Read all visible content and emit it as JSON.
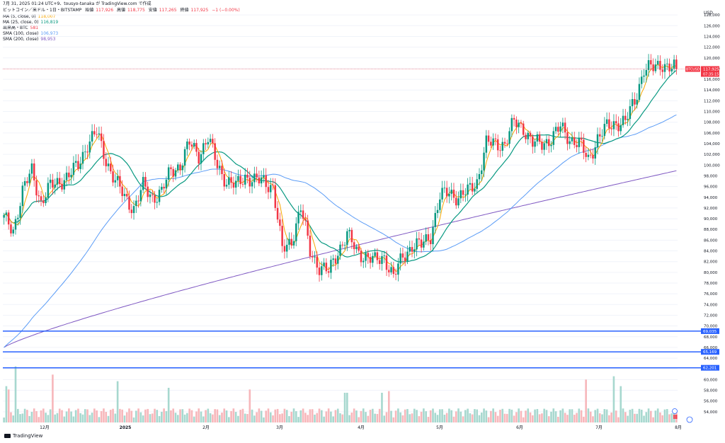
{
  "header": {
    "title_line": "7月 31, 2025 01:24 UTC+9、tousyo-tanaka が TradingView.com で作成",
    "symbol": "ビットコイン／米ドル・1日・BITSTAMP",
    "open_label": "始値",
    "open": "117,926",
    "high_label": "高値",
    "high": "118,775",
    "low_label": "安値",
    "low": "117,265",
    "close_label": "終値",
    "close": "117,925",
    "change": "−1 (−0.00%)",
    "indicators": [
      {
        "label": "MA (5, close, 0)",
        "value": "118,007",
        "cls": "ma5"
      },
      {
        "label": "MA (25, close, 0)",
        "value": "116,819",
        "cls": "ma25"
      },
      {
        "label": "出来高・BTC",
        "value": "581",
        "cls": "vol"
      },
      {
        "label": "SMA (100, close)",
        "value": "106,973",
        "cls": "sma100"
      },
      {
        "label": "SMA (200, close)",
        "value": "98,953",
        "cls": "sma200"
      }
    ]
  },
  "brand": "TradingView",
  "chart_data": {
    "type": "candlestick",
    "currency_label": "USD",
    "ylim": [
      52000,
      130000
    ],
    "y_ticks": [
      54000,
      56000,
      58000,
      60000,
      62000,
      64000,
      66000,
      68000,
      70000,
      72000,
      74000,
      76000,
      78000,
      80000,
      82000,
      84000,
      86000,
      88000,
      90000,
      92000,
      94000,
      96000,
      98000,
      100000,
      102000,
      104000,
      106000,
      108000,
      110000,
      112000,
      114000,
      116000,
      118000,
      120000,
      122000,
      124000,
      126000,
      128000
    ],
    "x_labels": [
      "12月",
      "2025",
      "2月",
      "3月",
      "4月",
      "5月",
      "6月",
      "7月",
      "8月"
    ],
    "price_label": {
      "symbol": "BTCUSD",
      "value": "117,925",
      "countdown": "07:35:15"
    },
    "horizontal_levels": [
      {
        "value": 69035,
        "label": "69,035"
      },
      {
        "value": 65169,
        "label": "65,169"
      },
      {
        "value": 62201,
        "label": "62,201"
      }
    ],
    "anchors": [
      [
        0,
        90000
      ],
      [
        4,
        88000
      ],
      [
        8,
        95000
      ],
      [
        12,
        99000
      ],
      [
        16,
        93000
      ],
      [
        20,
        96000
      ],
      [
        24,
        97000
      ],
      [
        28,
        98000
      ],
      [
        32,
        100000
      ],
      [
        36,
        104000
      ],
      [
        40,
        106000
      ],
      [
        44,
        101000
      ],
      [
        48,
        97000
      ],
      [
        52,
        94000
      ],
      [
        56,
        92000
      ],
      [
        60,
        96000
      ],
      [
        64,
        94000
      ],
      [
        68,
        95000
      ],
      [
        72,
        99000
      ],
      [
        76,
        100000
      ],
      [
        80,
        104000
      ],
      [
        84,
        102000
      ],
      [
        88,
        105000
      ],
      [
        92,
        100000
      ],
      [
        96,
        97000
      ],
      [
        100,
        96000
      ],
      [
        104,
        98000
      ],
      [
        108,
        97000
      ],
      [
        112,
        97000
      ],
      [
        116,
        96000
      ],
      [
        120,
        84000
      ],
      [
        124,
        86000
      ],
      [
        128,
        92000
      ],
      [
        132,
        84000
      ],
      [
        136,
        81000
      ],
      [
        140,
        80000
      ],
      [
        144,
        84000
      ],
      [
        148,
        87000
      ],
      [
        152,
        84000
      ],
      [
        156,
        83000
      ],
      [
        160,
        82000
      ],
      [
        164,
        83000
      ],
      [
        168,
        79000
      ],
      [
        172,
        83000
      ],
      [
        176,
        85000
      ],
      [
        180,
        85000
      ],
      [
        184,
        87000
      ],
      [
        188,
        94000
      ],
      [
        192,
        95000
      ],
      [
        196,
        94000
      ],
      [
        200,
        95000
      ],
      [
        204,
        97000
      ],
      [
        208,
        104000
      ],
      [
        212,
        104000
      ],
      [
        216,
        104000
      ],
      [
        220,
        108000
      ],
      [
        224,
        107000
      ],
      [
        228,
        104000
      ],
      [
        232,
        104000
      ],
      [
        236,
        105000
      ],
      [
        240,
        107000
      ],
      [
        244,
        105000
      ],
      [
        248,
        104000
      ],
      [
        252,
        101000
      ],
      [
        256,
        105000
      ],
      [
        260,
        107000
      ],
      [
        264,
        108000
      ],
      [
        268,
        108000
      ],
      [
        272,
        112000
      ],
      [
        276,
        118000
      ],
      [
        280,
        118000
      ],
      [
        284,
        119000
      ],
      [
        288,
        118000
      ],
      [
        290,
        117925
      ]
    ],
    "volume_peaks": [
      [
        1,
        22000
      ],
      [
        2,
        20000
      ],
      [
        5,
        34000
      ],
      [
        21,
        29000
      ],
      [
        49,
        25000
      ],
      [
        71,
        21000
      ],
      [
        106,
        20000
      ],
      [
        147,
        18000
      ],
      [
        148,
        18000
      ],
      [
        163,
        18000
      ],
      [
        166,
        19000
      ],
      [
        251,
        26000
      ],
      [
        263,
        28000
      ],
      [
        266,
        22000
      ]
    ]
  }
}
